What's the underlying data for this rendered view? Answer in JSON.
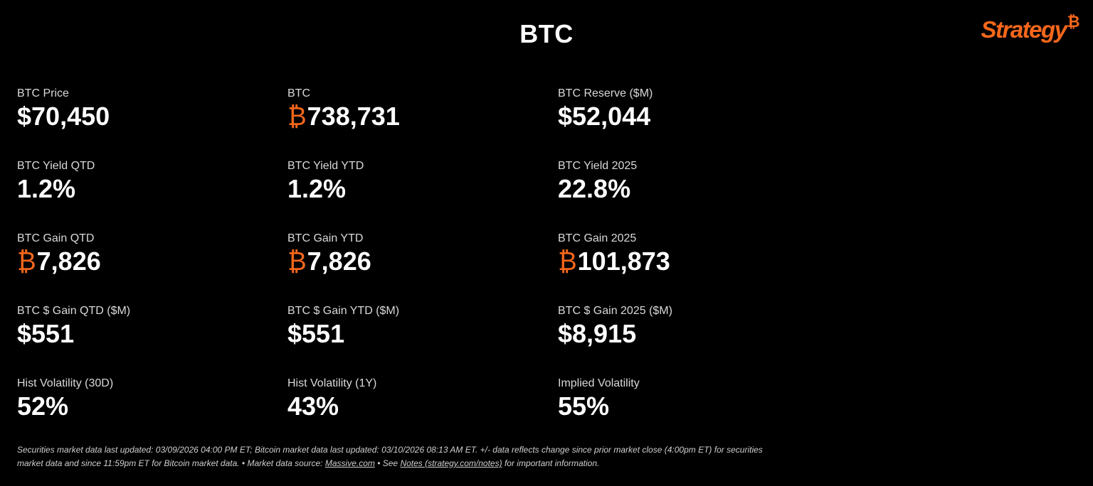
{
  "header": {
    "title": "BTC",
    "logo_text": "Strategy",
    "logo_mark": "₿"
  },
  "colors": {
    "background": "#000000",
    "text": "#ffffff",
    "label": "#d9d9d9",
    "accent_orange": "#f7671b"
  },
  "metrics": [
    {
      "label": "BTC Price",
      "prefix": "$",
      "value": "70,450",
      "btc": false
    },
    {
      "label": "BTC",
      "prefix": "₿",
      "value": "738,731",
      "btc": true
    },
    {
      "label": "BTC Reserve ($M)",
      "prefix": "$",
      "value": "52,044",
      "btc": false
    },
    {
      "label": "BTC Yield QTD",
      "prefix": "",
      "value": "1.2%",
      "btc": false
    },
    {
      "label": "BTC Yield YTD",
      "prefix": "",
      "value": "1.2%",
      "btc": false
    },
    {
      "label": "BTC Yield 2025",
      "prefix": "",
      "value": "22.8%",
      "btc": false
    },
    {
      "label": "BTC Gain QTD",
      "prefix": "₿",
      "value": "7,826",
      "btc": true
    },
    {
      "label": "BTC Gain YTD",
      "prefix": "₿",
      "value": "7,826",
      "btc": true
    },
    {
      "label": "BTC Gain 2025",
      "prefix": "₿",
      "value": "101,873",
      "btc": true
    },
    {
      "label": "BTC $ Gain QTD ($M)",
      "prefix": "$",
      "value": "551",
      "btc": false
    },
    {
      "label": "BTC $ Gain YTD ($M)",
      "prefix": "$",
      "value": "551",
      "btc": false
    },
    {
      "label": "BTC $ Gain 2025 ($M)",
      "prefix": "$",
      "value": "8,915",
      "btc": false
    },
    {
      "label": "Hist Volatility (30D)",
      "prefix": "",
      "value": "52%",
      "btc": false
    },
    {
      "label": "Hist Volatility (1Y)",
      "prefix": "",
      "value": "43%",
      "btc": false
    },
    {
      "label": "Implied Volatility",
      "prefix": "",
      "value": "55%",
      "btc": false
    }
  ],
  "footer": {
    "text_1": "Securities market data last updated: 03/09/2026 04:00 PM ET; Bitcoin market data last updated: 03/10/2026 08:13 AM ET. +/- data reflects change since prior market close (4:00pm ET) for securities market data and since 11:59pm ET for Bitcoin market data.  •  Market data source: ",
    "link_source": "Massive.com",
    "text_2": "  •  See ",
    "link_notes": "Notes (strategy.com/notes)",
    "text_3": " for important information."
  }
}
